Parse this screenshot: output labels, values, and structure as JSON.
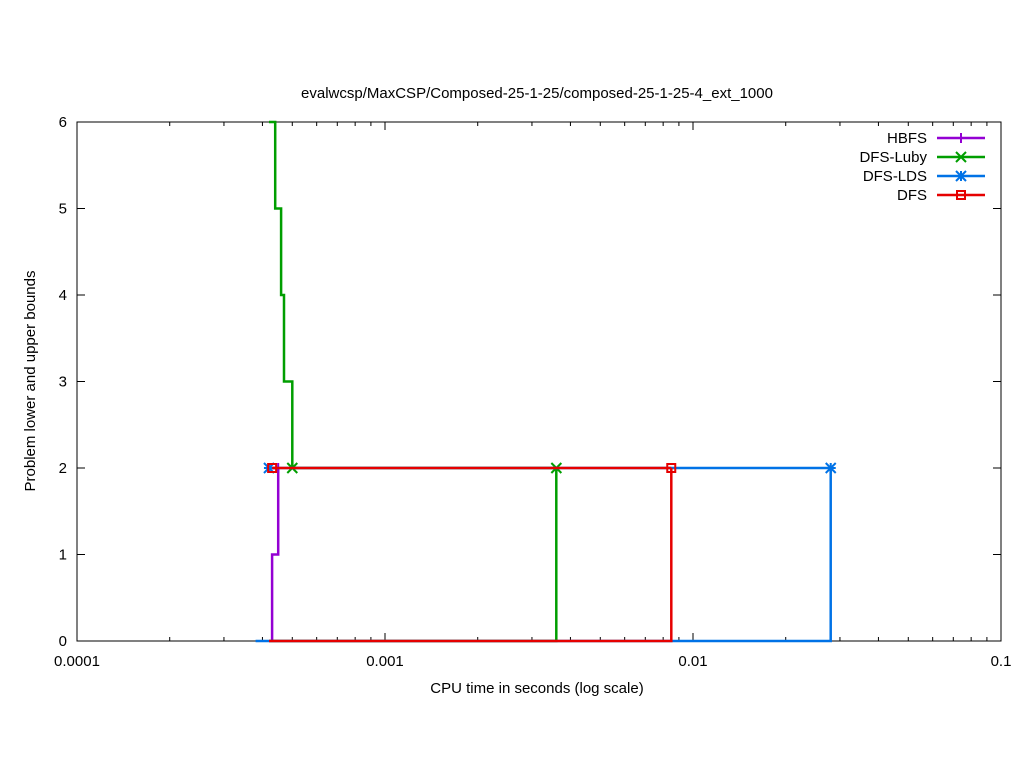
{
  "chart_data": {
    "type": "line",
    "title": "evalwcsp/MaxCSP/Composed-25-1-25/composed-25-1-25-4_ext_1000",
    "xlabel": "CPU time in seconds (log scale)",
    "ylabel": "Problem lower and upper bounds",
    "x_scale": "log",
    "xlim": [
      0.0001,
      0.1
    ],
    "ylim": [
      0,
      6
    ],
    "x_ticks": [
      0.0001,
      0.001,
      0.01,
      0.1
    ],
    "x_tick_labels": [
      "0.0001",
      "0.001",
      "0.01",
      "0.1"
    ],
    "y_ticks": [
      0,
      1,
      2,
      3,
      4,
      5,
      6
    ],
    "y_tick_labels": [
      "0",
      "1",
      "2",
      "3",
      "4",
      "5",
      "6"
    ],
    "grid": false,
    "legend_position": "top-right",
    "series": [
      {
        "name": "HBFS",
        "color": "#9400d3",
        "marker": "plus",
        "lower": [
          [
            0.00043,
            0
          ],
          [
            0.00043,
            1
          ],
          [
            0.00045,
            1
          ],
          [
            0.00045,
            2
          ],
          [
            0.00045,
            2
          ]
        ],
        "upper": [
          [
            0.00043,
            2
          ],
          [
            0.00045,
            2
          ]
        ],
        "markers": [
          [
            0.00045,
            2
          ]
        ]
      },
      {
        "name": "DFS-Luby",
        "color": "#009e00",
        "marker": "x",
        "lower": [
          [
            0.00042,
            0
          ],
          [
            0.0036,
            0
          ],
          [
            0.0036,
            2
          ]
        ],
        "upper": [
          [
            0.00042,
            6
          ],
          [
            0.00044,
            6
          ],
          [
            0.00044,
            5
          ],
          [
            0.00046,
            5
          ],
          [
            0.00046,
            4
          ],
          [
            0.00047,
            4
          ],
          [
            0.00047,
            3
          ],
          [
            0.0005,
            3
          ],
          [
            0.0005,
            2
          ],
          [
            0.0036,
            2
          ]
        ],
        "markers": [
          [
            0.0005,
            2
          ],
          [
            0.0036,
            2
          ]
        ]
      },
      {
        "name": "DFS-LDS",
        "color": "#0072e6",
        "marker": "star",
        "lower": [
          [
            0.00038,
            0
          ],
          [
            0.028,
            0
          ],
          [
            0.028,
            2
          ]
        ],
        "upper": [
          [
            0.00042,
            2
          ],
          [
            0.028,
            2
          ]
        ],
        "markers": [
          [
            0.00042,
            2
          ],
          [
            0.028,
            2
          ]
        ]
      },
      {
        "name": "DFS",
        "color": "#e60000",
        "marker": "square",
        "lower": [
          [
            0.00042,
            0
          ],
          [
            0.0085,
            0
          ],
          [
            0.0085,
            2
          ]
        ],
        "upper": [
          [
            0.00043,
            2
          ],
          [
            0.0085,
            2
          ]
        ],
        "markers": [
          [
            0.00043,
            2
          ],
          [
            0.0085,
            2
          ]
        ]
      }
    ]
  }
}
